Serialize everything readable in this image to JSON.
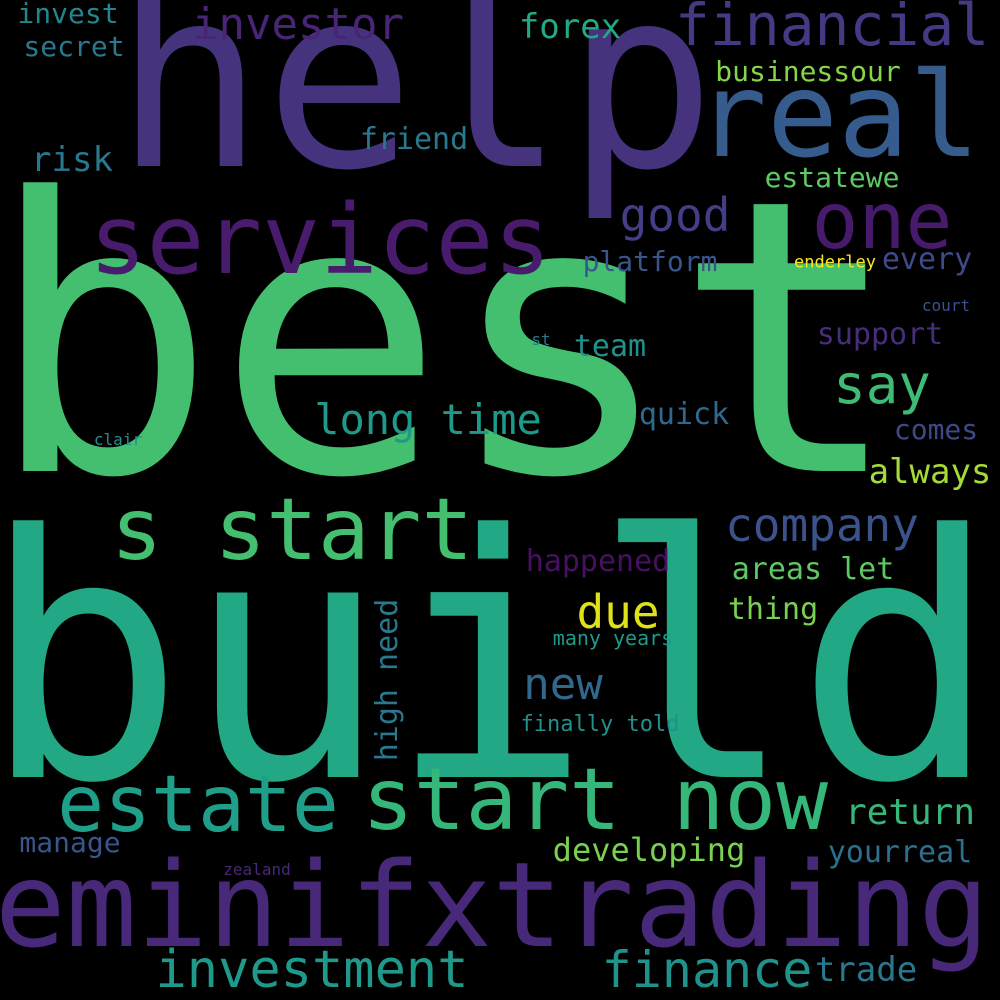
{
  "words": [
    {
      "text": "best",
      "color": "#44bf70"
    },
    {
      "text": "build",
      "color": "#22a884"
    },
    {
      "text": "help",
      "color": "#46337e"
    },
    {
      "text": "eminifxtrading",
      "color": "#482878"
    },
    {
      "text": "real",
      "color": "#365c8d"
    },
    {
      "text": "services",
      "color": "#481b6d"
    },
    {
      "text": "s start",
      "color": "#44bf70"
    },
    {
      "text": "start now",
      "color": "#35b779"
    },
    {
      "text": "estate",
      "color": "#1f9e89"
    },
    {
      "text": "one",
      "color": "#481a6c"
    },
    {
      "text": "financial",
      "color": "#443a83"
    },
    {
      "text": "investor",
      "color": "#482575"
    },
    {
      "text": "investment",
      "color": "#1f9a8a"
    },
    {
      "text": "finance",
      "color": "#21918c"
    },
    {
      "text": "company",
      "color": "#3b528b"
    },
    {
      "text": "say",
      "color": "#3fbc73"
    },
    {
      "text": "good",
      "color": "#433e85"
    },
    {
      "text": "long time",
      "color": "#1f9a8a"
    },
    {
      "text": "due",
      "color": "#dde318"
    },
    {
      "text": "new",
      "color": "#31688e"
    },
    {
      "text": "forex",
      "color": "#22a884"
    },
    {
      "text": "trade",
      "color": "#2a788e"
    },
    {
      "text": "return",
      "color": "#35b779"
    },
    {
      "text": "always",
      "color": "#a5db36"
    },
    {
      "text": "businessour",
      "color": "#86d549"
    },
    {
      "text": "estatewe",
      "color": "#5ec962"
    },
    {
      "text": "developing",
      "color": "#7ad151"
    },
    {
      "text": "yourreal",
      "color": "#2d708e"
    },
    {
      "text": "risk",
      "color": "#2a788e"
    },
    {
      "text": "friend",
      "color": "#29798e"
    },
    {
      "text": "invest",
      "color": "#25858e"
    },
    {
      "text": "secret",
      "color": "#2a788e"
    },
    {
      "text": "platform",
      "color": "#39568c"
    },
    {
      "text": "every",
      "color": "#3e4a89"
    },
    {
      "text": "support",
      "color": "#472d7b"
    },
    {
      "text": "team",
      "color": "#21918c"
    },
    {
      "text": "quick",
      "color": "#31688e"
    },
    {
      "text": "comes",
      "color": "#3e4989"
    },
    {
      "text": "happened",
      "color": "#471063"
    },
    {
      "text": "areas let",
      "color": "#5ec962"
    },
    {
      "text": "thing",
      "color": "#7ad151"
    },
    {
      "text": "many years",
      "color": "#1f9a8a"
    },
    {
      "text": "finally told",
      "color": "#21918c"
    },
    {
      "text": "high need",
      "color": "#2a788e"
    },
    {
      "text": "manage",
      "color": "#39568c"
    },
    {
      "text": "enderley",
      "color": "#fde725"
    },
    {
      "text": "court",
      "color": "#3b528b"
    },
    {
      "text": "st",
      "color": "#2a788e"
    },
    {
      "text": "clair",
      "color": "#21918c"
    },
    {
      "text": "zealand",
      "color": "#482878"
    }
  ]
}
